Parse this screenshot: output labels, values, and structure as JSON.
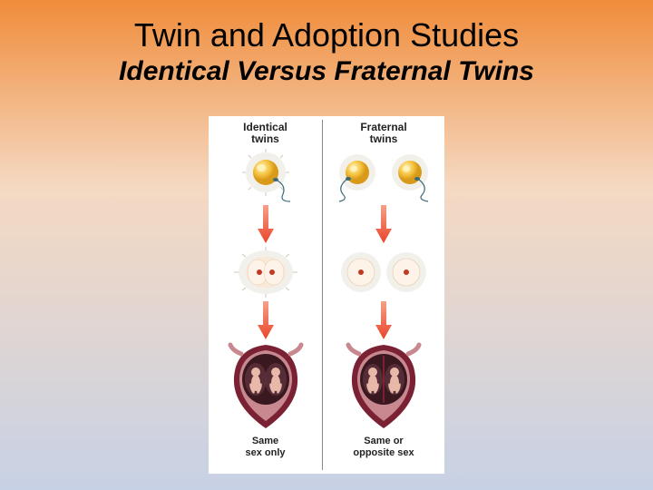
{
  "background": {
    "top_color": "#f08c3a",
    "mid_color": "#f5d9c2",
    "bottom_color": "#c7d1e5"
  },
  "title": "Twin and Adoption Studies",
  "subtitle": "Identical Versus Fraternal Twins",
  "diagram": {
    "columns": [
      {
        "label": "Identical\ntwins",
        "top_eggs": 1,
        "mid_type": "split_cell",
        "caption": "Same\nsex only"
      },
      {
        "label": "Fraternal\ntwins",
        "top_eggs": 2,
        "mid_type": "two_cells",
        "caption": "Same or\nopposite sex"
      }
    ],
    "colors": {
      "egg_fill": "#f5c542",
      "egg_shadow": "#d99a1a",
      "egg_highlight": "#fff4c0",
      "corona": "#d8d2c8",
      "sperm": "#3a6a7a",
      "arrow_fill": "#e8452a",
      "arrow_fill_light": "#f7a089",
      "nucleus": "#c03a24",
      "womb_outer": "#7a2234",
      "womb_inner": "#3a1820",
      "womb_flesh": "#c7888f",
      "fetus": "#e8b8a8"
    },
    "sizes": {
      "egg_radius": 14,
      "corona_radius": 22,
      "mid_cell_radius": 18,
      "womb_width": 78,
      "womb_height": 92
    }
  }
}
